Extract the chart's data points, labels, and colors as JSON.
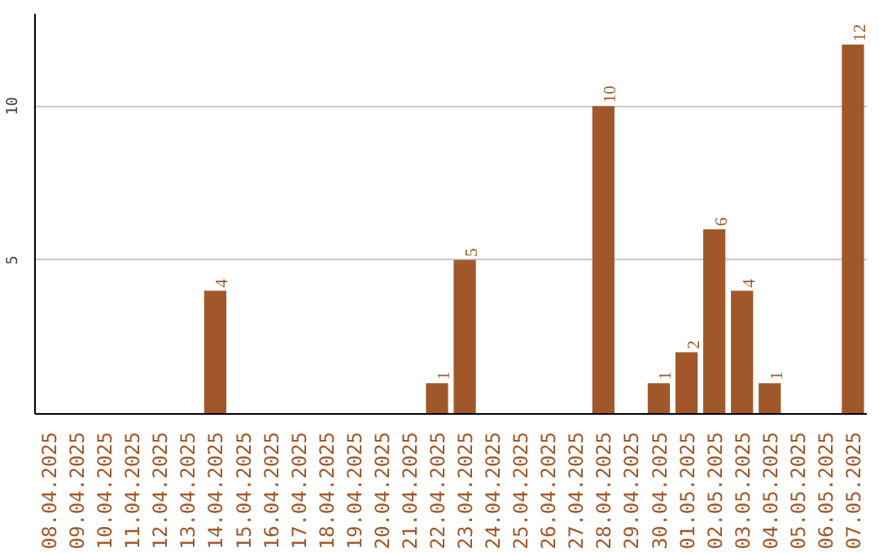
{
  "chart_data": {
    "type": "bar",
    "categories": [
      "08.04.2025",
      "09.04.2025",
      "10.04.2025",
      "11.04.2025",
      "12.04.2025",
      "13.04.2025",
      "14.04.2025",
      "15.04.2025",
      "16.04.2025",
      "17.04.2025",
      "18.04.2025",
      "19.04.2025",
      "20.04.2025",
      "21.04.2025",
      "22.04.2025",
      "23.04.2025",
      "24.04.2025",
      "25.04.2025",
      "26.04.2025",
      "27.04.2025",
      "28.04.2025",
      "29.04.2025",
      "30.04.2025",
      "01.05.2025",
      "02.05.2025",
      "03.05.2025",
      "04.05.2025",
      "05.05.2025",
      "06.05.2025",
      "07.05.2025"
    ],
    "values": [
      0,
      0,
      0,
      0,
      0,
      0,
      4,
      0,
      0,
      0,
      0,
      0,
      0,
      0,
      1,
      5,
      0,
      0,
      0,
      0,
      10,
      0,
      1,
      2,
      6,
      4,
      1,
      0,
      0,
      12
    ],
    "value_labels": [
      null,
      null,
      null,
      null,
      null,
      null,
      "4",
      null,
      null,
      null,
      null,
      null,
      null,
      null,
      "1",
      "5",
      null,
      null,
      null,
      null,
      "10",
      null,
      "1",
      "2",
      "6",
      "4",
      "1",
      null,
      null,
      "12"
    ],
    "color": "#a0582a",
    "ylim": [
      0,
      13
    ],
    "yticks": [
      5,
      10
    ],
    "grid": "y"
  }
}
